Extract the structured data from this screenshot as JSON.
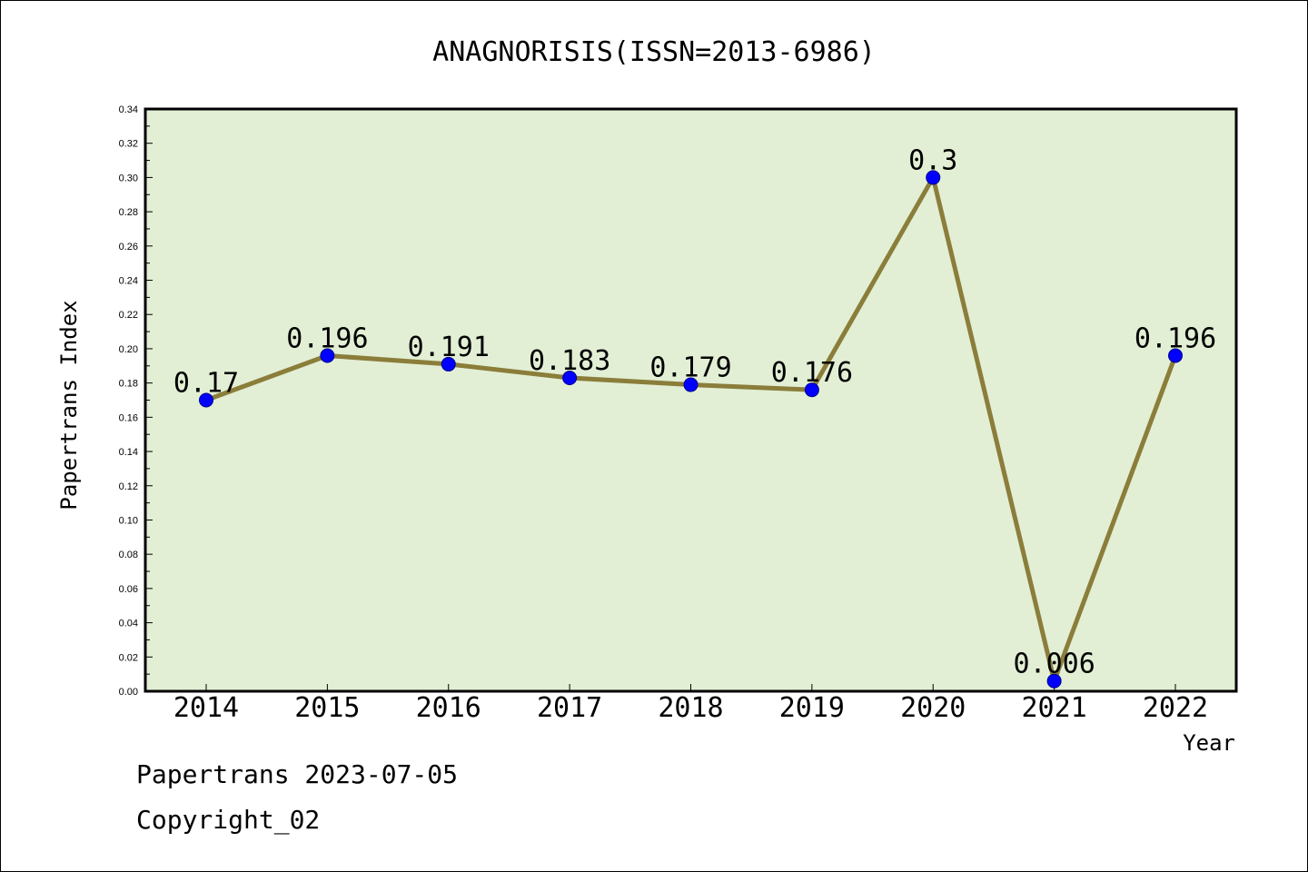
{
  "chart_data": {
    "type": "line",
    "title": "ANAGNORISIS(ISSN=2013-6986)",
    "xlabel": "Year",
    "ylabel": "Papertrans Index",
    "categories": [
      "2014",
      "2015",
      "2016",
      "2017",
      "2018",
      "2019",
      "2020",
      "2021",
      "2022"
    ],
    "values": [
      0.17,
      0.196,
      0.191,
      0.183,
      0.179,
      0.176,
      0.3,
      0.006,
      0.196
    ],
    "data_labels": [
      "0.17",
      "0.196",
      "0.191",
      "0.183",
      "0.179",
      "0.176",
      "0.3",
      "0.006",
      "0.196"
    ],
    "ylim": [
      0,
      0.34
    ],
    "yticks": [
      "0.00",
      "0.02",
      "0.04",
      "0.06",
      "0.08",
      "0.10",
      "0.12",
      "0.14",
      "0.16",
      "0.18",
      "0.20",
      "0.22",
      "0.24",
      "0.26",
      "0.28",
      "0.30",
      "0.32",
      "0.34"
    ],
    "grid": false,
    "colors": {
      "plot_background": "#e2efd5",
      "line": "#8b7d3a",
      "marker": "#0000ff"
    }
  },
  "footer": {
    "line1": "Papertrans 2023-07-05",
    "line2": "Copyright_02"
  }
}
